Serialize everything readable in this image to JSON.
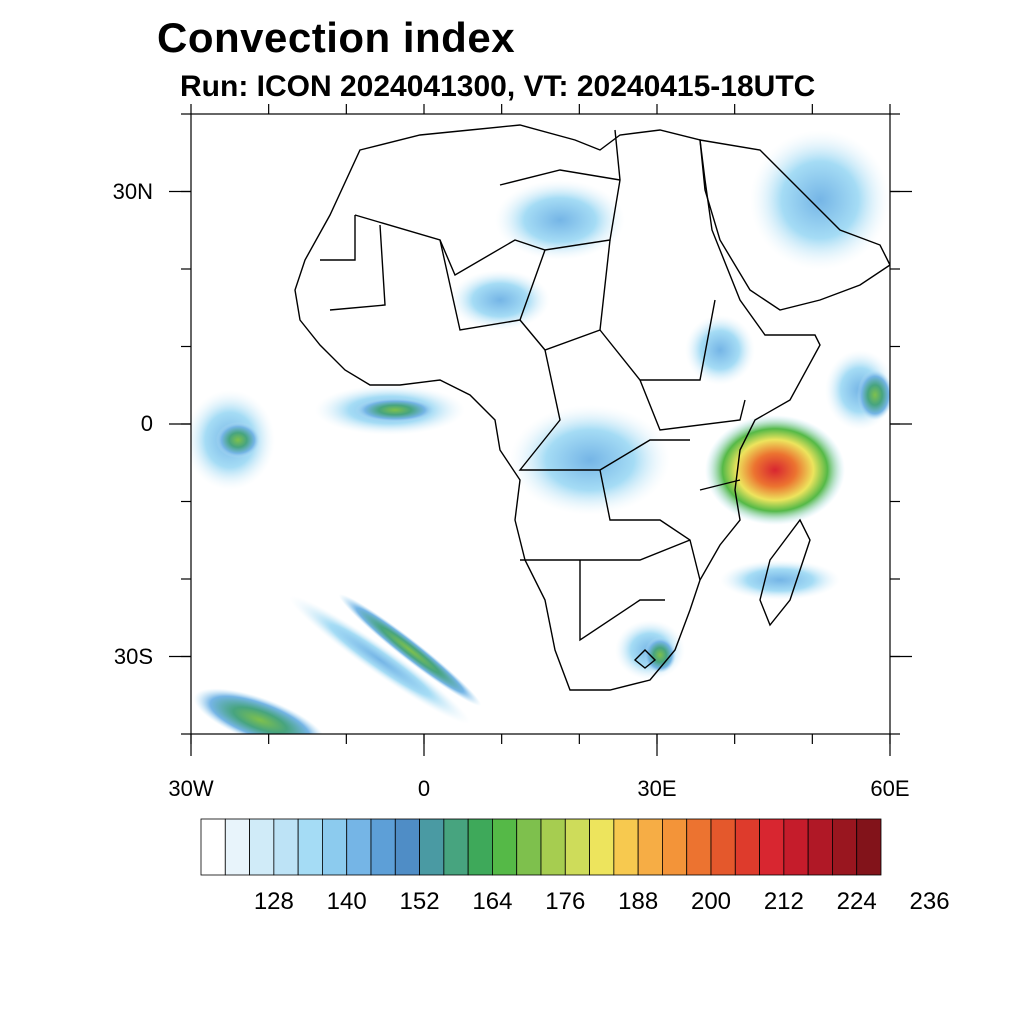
{
  "title": "Convection index",
  "subtitle": "Run: ICON 2024041300,  VT: 20240415-18UTC",
  "axes": {
    "lon_min": -30,
    "lon_max": 60,
    "lat_min": -40,
    "lat_max": 40,
    "y_ticks": [
      {
        "value": 30,
        "label": "30N"
      },
      {
        "value": 0,
        "label": "0"
      },
      {
        "value": -30,
        "label": "30S"
      }
    ],
    "x_ticks": [
      {
        "value": -30,
        "label": "30W"
      },
      {
        "value": 0,
        "label": "0"
      },
      {
        "value": 30,
        "label": "30E"
      },
      {
        "value": 60,
        "label": "60E"
      }
    ]
  },
  "colorbar": {
    "colors": [
      "#ffffff",
      "#e8f4fb",
      "#d0ebf8",
      "#bde3f6",
      "#a5dcf5",
      "#8ccbee",
      "#75b5e6",
      "#5d9fd7",
      "#4f8dc6",
      "#4a9aa3",
      "#47a47f",
      "#3ea95a",
      "#55b947",
      "#7ec04d",
      "#a6cd50",
      "#cedc5a",
      "#ede45d",
      "#f7c94f",
      "#f6ad45",
      "#f39439",
      "#ec7330",
      "#e4582c",
      "#de3b2c",
      "#d82630",
      "#c51c2b",
      "#b01826",
      "#99161f",
      "#82131a"
    ],
    "labels": [
      "128",
      "140",
      "152",
      "164",
      "176",
      "188",
      "200",
      "212",
      "224",
      "236"
    ]
  }
}
